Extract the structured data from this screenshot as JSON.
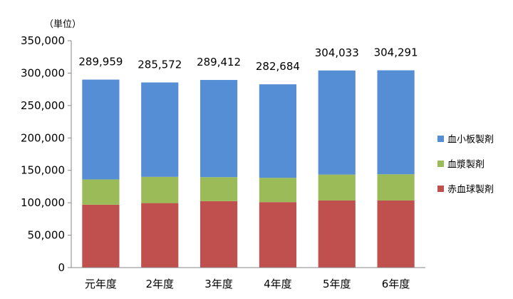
{
  "chart_data": {
    "type": "bar",
    "stacked": true,
    "unit_label": "（単位）",
    "categories": [
      "元年度",
      "2年度",
      "3年度",
      "4年度",
      "5年度",
      "6年度"
    ],
    "series": [
      {
        "name": "赤血球製剤",
        "color": "#C0504D",
        "values": [
          97000,
          99500,
          102500,
          101000,
          103500,
          103500
        ]
      },
      {
        "name": "血漿製剤",
        "color": "#9BBB59",
        "values": [
          39000,
          40500,
          37000,
          37500,
          40000,
          40500
        ]
      },
      {
        "name": "血小板製剤",
        "color": "#558ED5",
        "values": [
          153959,
          145572,
          149912,
          144184,
          160533,
          160291
        ]
      }
    ],
    "totals": [
      289959,
      285572,
      289412,
      282684,
      304033,
      304291
    ],
    "total_labels": [
      "289,959",
      "285,572",
      "289,412",
      "282,684",
      "304,033",
      "304,291"
    ],
    "yticks": [
      "0",
      "50,000",
      "100,000",
      "150,000",
      "200,000",
      "250,000",
      "300,000",
      "350,000"
    ],
    "ylim": [
      0,
      350000
    ],
    "grid": false,
    "legend_position": "right",
    "legend_order": [
      "血小板製剤",
      "血漿製剤",
      "赤血球製剤"
    ]
  }
}
